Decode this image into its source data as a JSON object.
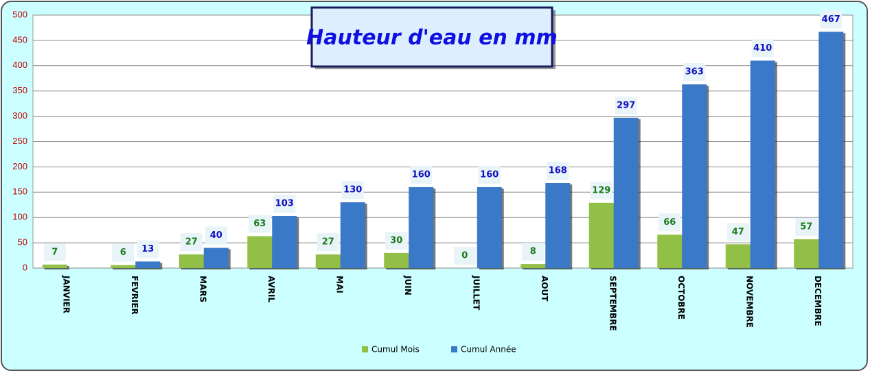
{
  "chart_data": {
    "type": "bar",
    "title": "Hauteur d'eau en mm",
    "categories": [
      "JANVIER",
      "FEVRIER",
      "MARS",
      "AVRIL",
      "MAI",
      "JUIN",
      "JUILLET",
      "AOUT",
      "SEPTEMBRE",
      "OCTOBRE",
      "NOVEMBRE",
      "DECEMBRE"
    ],
    "series": [
      {
        "name": "Cumul Mois",
        "color": "#92c046",
        "label_color": "#1a7a1a",
        "values": [
          7,
          6,
          27,
          63,
          27,
          30,
          0,
          8,
          129,
          66,
          47,
          57
        ]
      },
      {
        "name": "Cumul Année",
        "color": "#3a78c8",
        "label_color": "#1010c0",
        "values": [
          null,
          13,
          40,
          103,
          130,
          160,
          160,
          168,
          297,
          363,
          410,
          467
        ]
      }
    ],
    "ylim": [
      0,
      500
    ],
    "yticks": [
      0,
      50,
      100,
      150,
      200,
      250,
      300,
      350,
      400,
      450,
      500
    ],
    "grid": true
  }
}
